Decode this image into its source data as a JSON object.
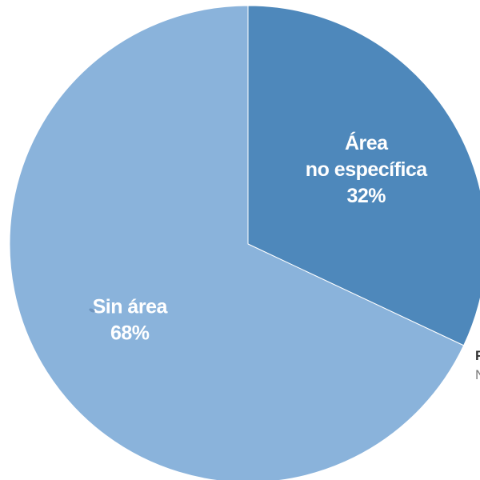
{
  "chart_data": {
    "type": "pie",
    "title": "",
    "slices": [
      {
        "label_lines": [
          "Área",
          "no específica"
        ],
        "value_label": "32%",
        "value": 32,
        "color": "#4e88bb"
      },
      {
        "label_lines": [
          "Sin área"
        ],
        "value_label": "68%",
        "value": 68,
        "color": "#8ab3db"
      }
    ],
    "legend": "none"
  },
  "clipped_text": {
    "line1": "F",
    "line2": "N"
  }
}
